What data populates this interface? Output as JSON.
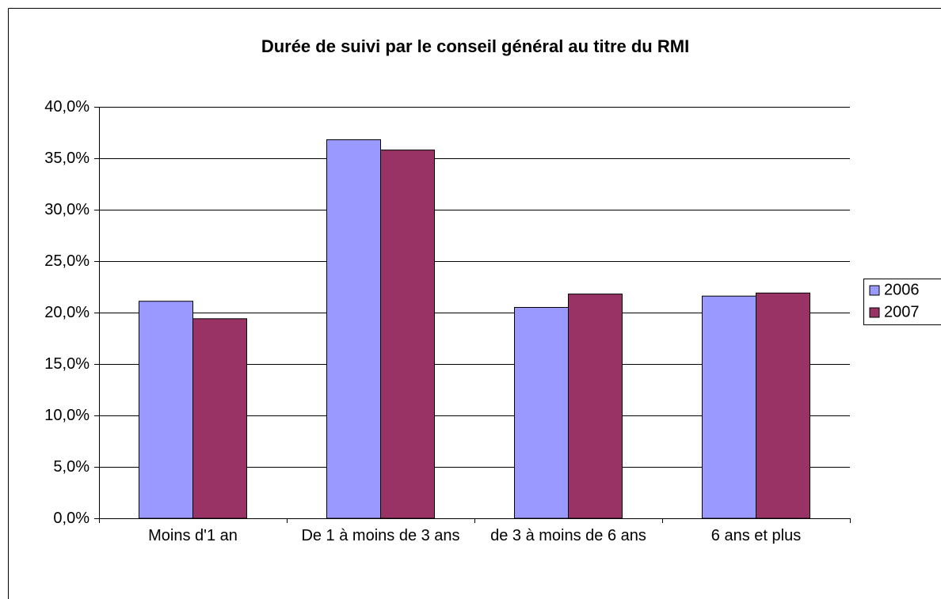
{
  "chart_data": {
    "type": "bar",
    "title": "Durée de suivi par le conseil général au titre du RMI",
    "categories": [
      "Moins d'1 an",
      "De 1 à moins de 3 ans",
      "de 3 à moins de 6 ans",
      "6 ans et plus"
    ],
    "series": [
      {
        "name": "2006",
        "color": "#9999ff",
        "values": [
          21.1,
          36.8,
          20.5,
          21.6
        ]
      },
      {
        "name": "2007",
        "color": "#993366",
        "values": [
          19.4,
          35.8,
          21.8,
          21.9
        ]
      }
    ],
    "ylim": [
      0,
      40
    ],
    "yticks": [
      {
        "value": 0,
        "label": "0,0%"
      },
      {
        "value": 5,
        "label": "5,0%"
      },
      {
        "value": 10,
        "label": "10,0%"
      },
      {
        "value": 15,
        "label": "15,0%"
      },
      {
        "value": 20,
        "label": "20,0%"
      },
      {
        "value": 25,
        "label": "25,0%"
      },
      {
        "value": 30,
        "label": "30,0%"
      },
      {
        "value": 35,
        "label": "35,0%"
      },
      {
        "value": 40,
        "label": "40,0%"
      }
    ],
    "grid": true,
    "legend": "right"
  }
}
